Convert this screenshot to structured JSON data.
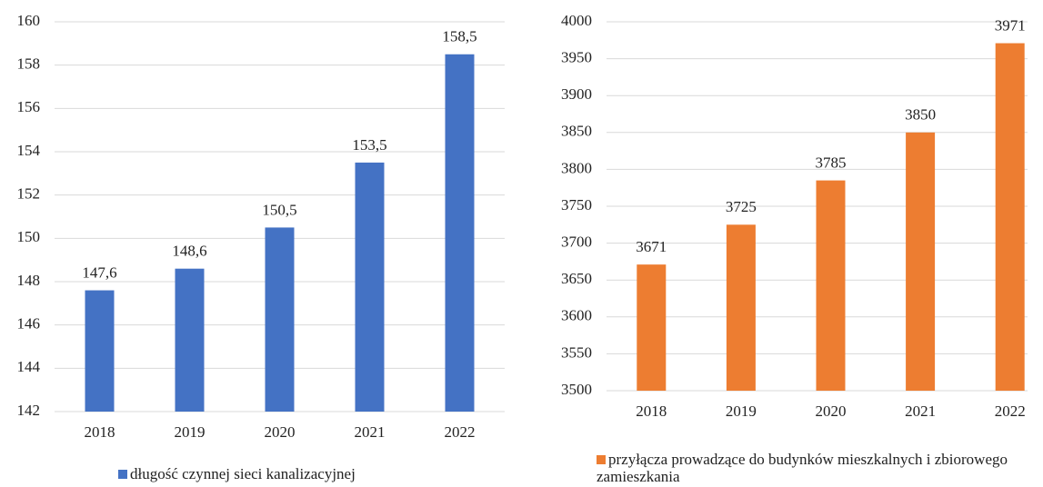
{
  "chart_data": [
    {
      "type": "bar",
      "categories": [
        "2018",
        "2019",
        "2020",
        "2021",
        "2022"
      ],
      "series": [
        {
          "name": "długość czynnej sieci kanalizacyjnej",
          "color": "#4472c4",
          "values": [
            147.6,
            148.6,
            150.5,
            153.5,
            158.5
          ],
          "value_labels": [
            "147,6",
            "148,6",
            "150,5",
            "153,5",
            "158,5"
          ]
        }
      ],
      "ylim": [
        142,
        160
      ],
      "yticks": [
        142,
        144,
        146,
        148,
        150,
        152,
        154,
        156,
        158,
        160
      ],
      "grid": true,
      "legend": "bottom"
    },
    {
      "type": "bar",
      "categories": [
        "2018",
        "2019",
        "2020",
        "2021",
        "2022"
      ],
      "series": [
        {
          "name": "przyłącza prowadzące do budynków mieszkalnych i zbiorowego zamieszkania",
          "color": "#ed7d31",
          "values": [
            3671,
            3725,
            3785,
            3850,
            3971
          ]
        }
      ],
      "ylim": [
        3500,
        4000
      ],
      "yticks": [
        3500,
        3550,
        3600,
        3650,
        3700,
        3750,
        3800,
        3850,
        3900,
        3950,
        4000
      ],
      "grid": true,
      "legend": "bottom"
    }
  ]
}
